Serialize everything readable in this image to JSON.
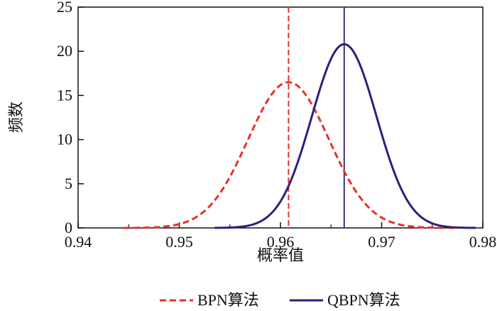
{
  "chart_data": {
    "type": "line",
    "title": "",
    "xlabel": "概率值",
    "ylabel": "频数",
    "xlim": [
      0.94,
      0.98
    ],
    "ylim": [
      0,
      25
    ],
    "x_ticks": [
      "0.94",
      "0.95",
      "0.96",
      "0.97",
      "0.98"
    ],
    "y_ticks": [
      "0",
      "5",
      "10",
      "15",
      "20",
      "25"
    ],
    "grid": false,
    "legend_position": "bottom",
    "series": [
      {
        "name": "BPN算法",
        "style": "dashed",
        "color": "#e8312a",
        "mean": 0.9608,
        "peak": 16.5,
        "sd": 0.004,
        "x_range": [
          0.9445,
          0.9775
        ],
        "vline_x": 0.9608
      },
      {
        "name": "QBPN算法",
        "style": "solid",
        "color": "#2e1f7a",
        "mean": 0.9663,
        "peak": 20.8,
        "sd": 0.0032,
        "x_range": [
          0.9535,
          0.9793
        ],
        "vline_x": 0.9663
      }
    ]
  }
}
